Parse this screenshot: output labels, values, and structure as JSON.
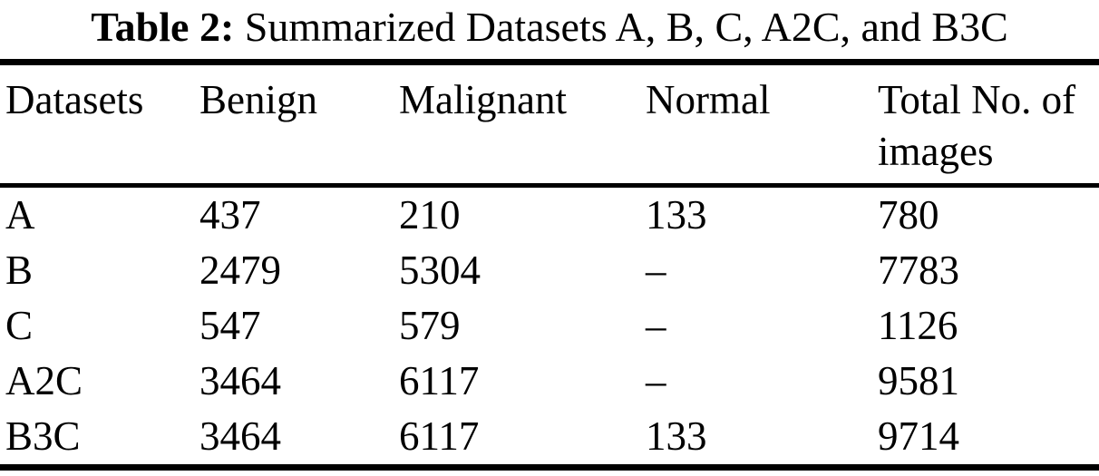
{
  "title": {
    "label": "Table 2:",
    "text": "Summarized Datasets A, B, C, A2C, and B3C"
  },
  "table": {
    "columns": [
      "Datasets",
      "Benign",
      "Malignant",
      "Normal",
      "Total No. of images"
    ],
    "rows": [
      {
        "dataset": "A",
        "benign": "437",
        "malignant": "210",
        "normal": "133",
        "total": "780"
      },
      {
        "dataset": "B",
        "benign": "2479",
        "malignant": "5304",
        "normal": "–",
        "total": "7783"
      },
      {
        "dataset": "C",
        "benign": "547",
        "malignant": "579",
        "normal": "–",
        "total": "1126"
      },
      {
        "dataset": "A2C",
        "benign": "3464",
        "malignant": "6117",
        "normal": "–",
        "total": "9581"
      },
      {
        "dataset": "B3C",
        "benign": "3464",
        "malignant": "6117",
        "normal": "133",
        "total": "9714"
      }
    ]
  },
  "colors": {
    "text": "#000000",
    "background": "#ffffff",
    "rule": "#000000"
  }
}
